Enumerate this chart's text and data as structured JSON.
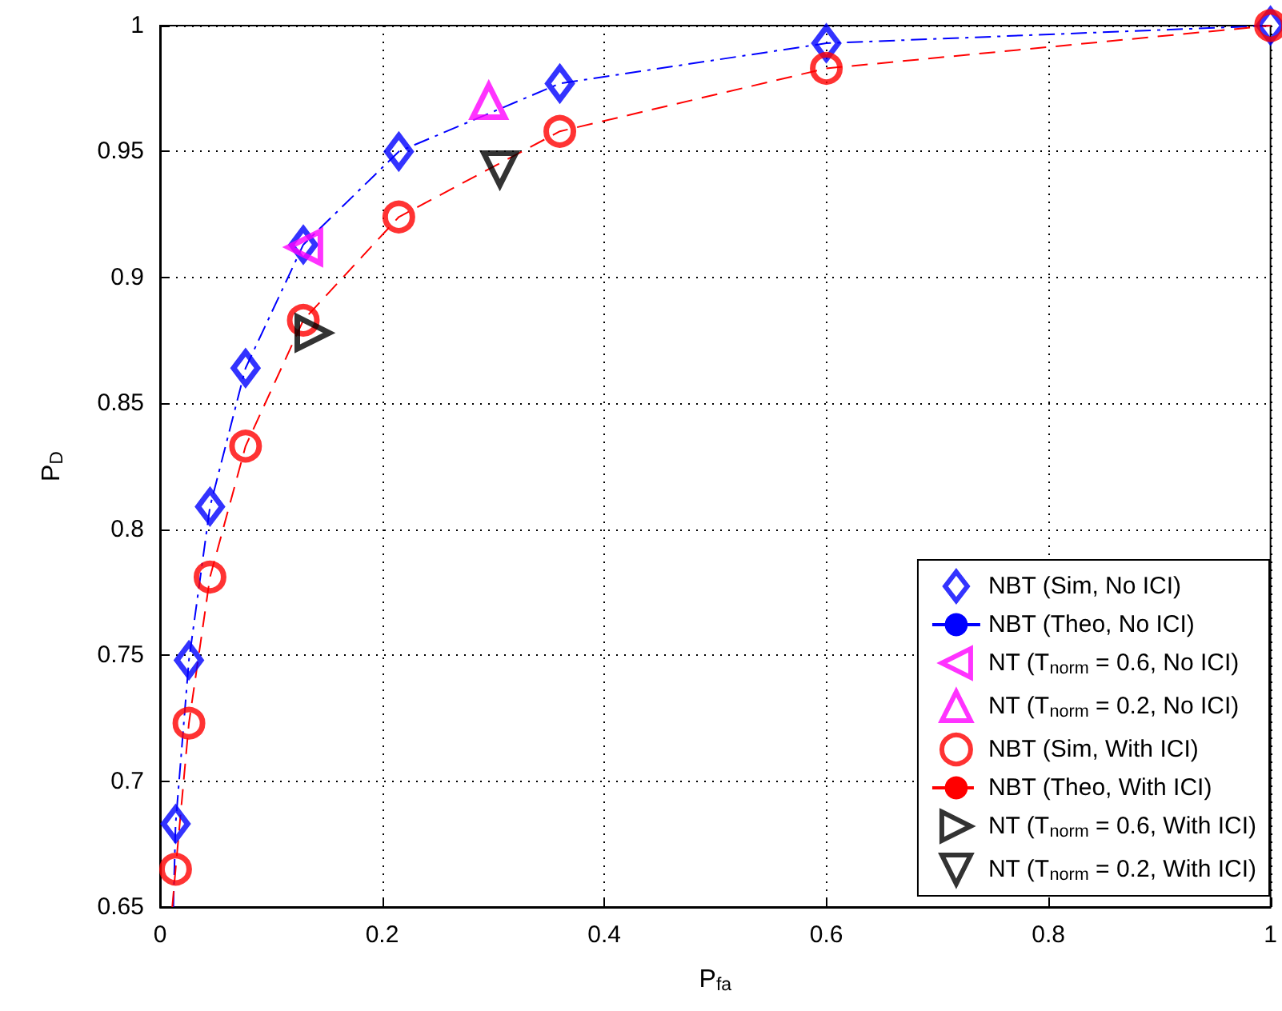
{
  "chart_data": {
    "type": "scatter",
    "xlabel": "P$_{fa}$",
    "ylabel": "P$_{D}$",
    "xlim": [
      0,
      1
    ],
    "ylim": [
      0.65,
      1
    ],
    "xticks": [
      0,
      0.2,
      0.4,
      0.6,
      0.8,
      1
    ],
    "yticks": [
      0.65,
      0.7,
      0.75,
      0.8,
      0.85,
      0.9,
      0.95,
      1
    ],
    "grid": true,
    "legend": "bottom right",
    "series": [
      {
        "name": "NBT (Sim, No ICI)",
        "marker": "diamond",
        "color": "#0000ff",
        "x": [
          0.014,
          0.026,
          0.045,
          0.077,
          0.129,
          0.215,
          0.36,
          0.6,
          1
        ],
        "values": [
          0.683,
          0.748,
          0.809,
          0.864,
          0.913,
          0.95,
          0.977,
          0.993,
          1
        ]
      },
      {
        "name": "NBT (Theo, No ICI)",
        "type": "line",
        "marker": "none",
        "line_style": "dashdot",
        "color": "#0000ff",
        "x": [
          0.012,
          0.014,
          0.026,
          0.045,
          0.077,
          0.129,
          0.215,
          0.36,
          0.6,
          1
        ],
        "values": [
          0.65,
          0.683,
          0.748,
          0.809,
          0.864,
          0.913,
          0.95,
          0.977,
          0.993,
          1
        ]
      },
      {
        "name": "NT (T$_{norm}$ = 0.6, No ICI)",
        "marker": "triangle-left",
        "color": "#ff00ff",
        "x": [
          0.13
        ],
        "values": [
          0.912
        ]
      },
      {
        "name": "NT (T$_{norm}$ = 0.2, No ICI)",
        "marker": "triangle-up",
        "color": "#ff00ff",
        "x": [
          0.296
        ],
        "values": [
          0.97
        ]
      },
      {
        "name": "NBT (Sim, With ICI)",
        "marker": "circle",
        "color": "#ff0000",
        "x": [
          0.014,
          0.026,
          0.045,
          0.077,
          0.129,
          0.215,
          0.36,
          0.6,
          1
        ],
        "values": [
          0.665,
          0.723,
          0.781,
          0.833,
          0.883,
          0.924,
          0.958,
          0.983,
          1
        ]
      },
      {
        "name": "NBT (Theo, With ICI)",
        "type": "line",
        "marker": "none",
        "line_style": "dashed",
        "color": "#ff0000",
        "x": [
          0.011,
          0.014,
          0.026,
          0.045,
          0.077,
          0.129,
          0.215,
          0.36,
          0.6,
          1
        ],
        "values": [
          0.65,
          0.665,
          0.723,
          0.781,
          0.833,
          0.883,
          0.924,
          0.958,
          0.983,
          1
        ]
      },
      {
        "name": "NT (T$_{norm}$ = 0.6, With ICI)",
        "marker": "triangle-right",
        "color": "#000000",
        "x": [
          0.138
        ],
        "values": [
          0.878
        ]
      },
      {
        "name": "NT (T$_{norm}$ = 0.2, With ICI)",
        "marker": "triangle-down",
        "color": "#000000",
        "x": [
          0.306
        ],
        "values": [
          0.943
        ]
      }
    ]
  }
}
